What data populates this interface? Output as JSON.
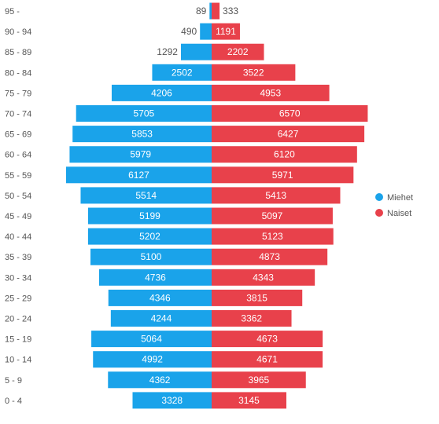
{
  "chart_data": {
    "type": "bar",
    "orientation": "horizontal",
    "layout": "population-pyramid",
    "categories": [
      "95 -",
      "90 - 94",
      "85 - 89",
      "80 - 84",
      "75 - 79",
      "70 - 74",
      "65 - 69",
      "60 - 64",
      "55 - 59",
      "50 - 54",
      "45 - 49",
      "40 - 44",
      "35 - 39",
      "30 - 34",
      "25 - 29",
      "20 - 24",
      "15 - 19",
      "10 - 14",
      "5 - 9",
      "0 - 4"
    ],
    "series": [
      {
        "name": "Miehet",
        "color": "#1aa3ea",
        "side": "left",
        "values": [
          89,
          490,
          1292,
          2502,
          4206,
          5705,
          5853,
          5979,
          6127,
          5514,
          5199,
          5202,
          5100,
          4736,
          4346,
          4244,
          5064,
          4992,
          4362,
          3328
        ]
      },
      {
        "name": "Naiset",
        "color": "#e8414b",
        "side": "right",
        "values": [
          333,
          1191,
          2202,
          3522,
          4953,
          6570,
          6427,
          6120,
          5971,
          5413,
          5097,
          5123,
          4873,
          4343,
          3815,
          3362,
          4673,
          4671,
          3965,
          3145
        ]
      }
    ],
    "legend_position": "right",
    "grid": false,
    "title": "",
    "xlabel": "",
    "ylabel": ""
  }
}
